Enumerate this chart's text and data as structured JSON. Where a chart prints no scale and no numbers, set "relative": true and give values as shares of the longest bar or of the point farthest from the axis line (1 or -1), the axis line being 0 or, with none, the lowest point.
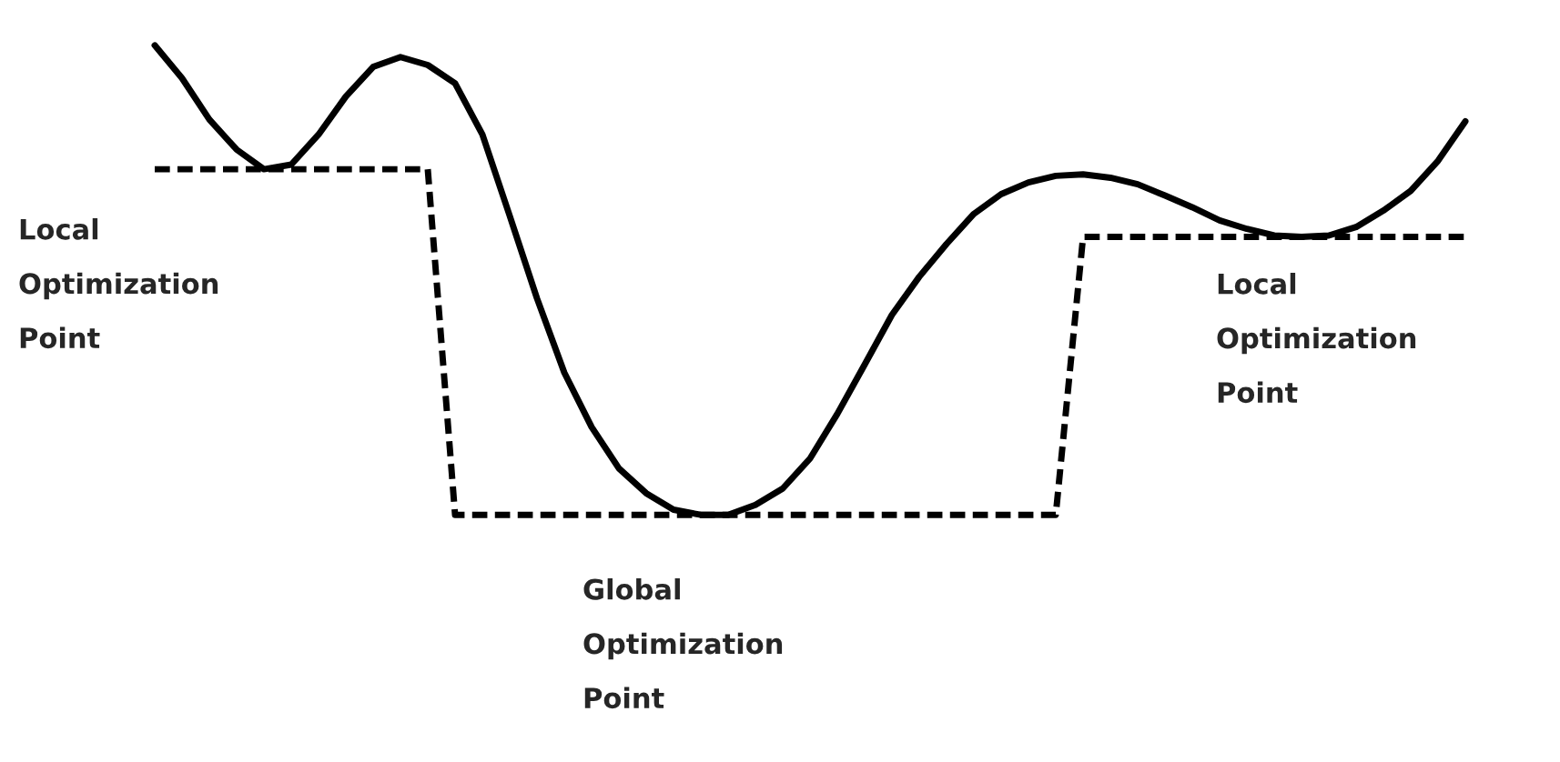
{
  "chart_data": {
    "type": "line",
    "relative": true,
    "categories": [
      null,
      null,
      null,
      null,
      null,
      null,
      null,
      null,
      null,
      null,
      null,
      null,
      null,
      null,
      null,
      null,
      null,
      null,
      null,
      null,
      null,
      null,
      null,
      null,
      null,
      null,
      null,
      null,
      null,
      null,
      null,
      null,
      null,
      null,
      null,
      null,
      null,
      null,
      null,
      null,
      null,
      null,
      null,
      null,
      null,
      null,
      null,
      null,
      null
    ],
    "series": [
      {
        "color": "#000000",
        "line_style": "solid",
        "values": [
          1.0,
          0.93,
          0.842,
          0.778,
          0.736,
          0.746,
          0.81,
          0.891,
          0.954,
          0.975,
          0.958,
          0.919,
          0.81,
          0.637,
          0.461,
          0.303,
          0.187,
          0.099,
          0.046,
          0.011,
          0,
          0,
          0.021,
          0.056,
          0.12,
          0.215,
          0.32,
          0.426,
          0.507,
          0.577,
          0.641,
          0.683,
          0.708,
          0.722,
          0.725,
          0.718,
          0.704,
          0.68,
          0.655,
          0.627,
          0.609,
          0.595,
          0.592,
          0.595,
          0.613,
          0.648,
          0.69,
          0.754,
          0.838
        ]
      },
      {
        "color": "#000000",
        "line_style": "dashed",
        "values": [
          0.736,
          0.736,
          0.736,
          0.736,
          0.736,
          0.736,
          0.736,
          0.736,
          0.736,
          0.736,
          0.736,
          0,
          0,
          0,
          0,
          0,
          0,
          0,
          0,
          0,
          0,
          0,
          0,
          0,
          0,
          0,
          0,
          0,
          0,
          0,
          0,
          0,
          0,
          0,
          0.592,
          0.592,
          0.592,
          0.592,
          0.592,
          0.592,
          0.592,
          0.592,
          0.592,
          0.592,
          0.592,
          0.592,
          0.592,
          0.592,
          0.592
        ]
      }
    ],
    "annotations": [
      "Local\nOptimization\nPoint",
      "Global\nOptimization\nPoint",
      "Local\nOptimization\nPoint"
    ]
  }
}
